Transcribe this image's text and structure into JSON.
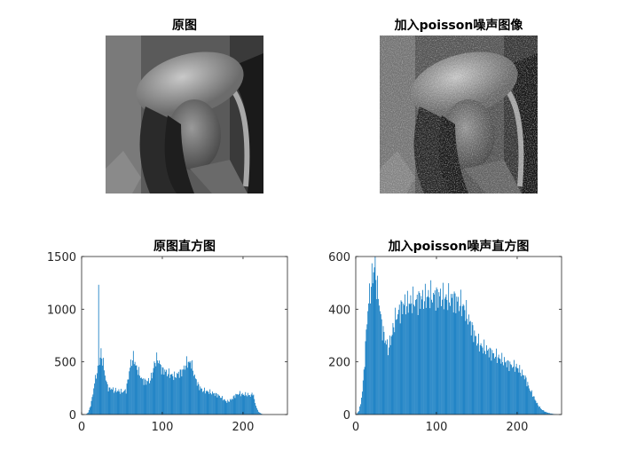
{
  "figure": {
    "background": "#ffffff",
    "bar_color": "#0072BD",
    "axis_color": "#262626"
  },
  "panels": {
    "original_image": {
      "title": "原图",
      "content": "grayscale photograph of a woman wearing a wide-brimmed hat"
    },
    "noisy_image": {
      "title": "加入poisson噪声图像",
      "content": "same grayscale photograph with grainy Poisson noise"
    }
  },
  "chart_data": [
    {
      "type": "bar",
      "title": "原图直方图",
      "xlabel": "",
      "ylabel": "",
      "xlim": [
        0,
        255
      ],
      "ylim": [
        0,
        1500
      ],
      "xticks": [
        0,
        100,
        200
      ],
      "yticks": [
        0,
        500,
        1000,
        1500
      ],
      "grid": false,
      "x": [
        0,
        5,
        8,
        10,
        12,
        14,
        16,
        18,
        20,
        21,
        22,
        23,
        24,
        25,
        26,
        27,
        28,
        30,
        32,
        34,
        36,
        38,
        40,
        45,
        50,
        55,
        58,
        60,
        62,
        64,
        66,
        68,
        70,
        72,
        75,
        80,
        85,
        88,
        90,
        92,
        94,
        96,
        98,
        100,
        102,
        105,
        110,
        115,
        120,
        125,
        128,
        130,
        132,
        134,
        135,
        136,
        138,
        140,
        145,
        150,
        160,
        170,
        180,
        185,
        190,
        195,
        200,
        205,
        210,
        212,
        215,
        218,
        220,
        222,
        225,
        255
      ],
      "values": [
        0,
        0,
        20,
        60,
        120,
        200,
        300,
        380,
        420,
        1310,
        470,
        560,
        580,
        540,
        520,
        480,
        430,
        330,
        270,
        240,
        250,
        240,
        230,
        225,
        215,
        230,
        360,
        450,
        510,
        540,
        500,
        440,
        420,
        380,
        330,
        310,
        330,
        400,
        480,
        510,
        530,
        500,
        450,
        420,
        420,
        400,
        380,
        360,
        390,
        410,
        460,
        490,
        500,
        480,
        510,
        480,
        430,
        360,
        270,
        230,
        210,
        180,
        120,
        140,
        180,
        200,
        190,
        190,
        180,
        210,
        110,
        40,
        20,
        10,
        0,
        0
      ]
    },
    {
      "type": "bar",
      "title": "加入poisson噪声直方图",
      "xlabel": "",
      "ylabel": "",
      "xlim": [
        0,
        255
      ],
      "ylim": [
        0,
        600
      ],
      "xticks": [
        0,
        100,
        200
      ],
      "yticks": [
        0,
        200,
        400,
        600
      ],
      "grid": false,
      "x": [
        0,
        2,
        4,
        6,
        8,
        10,
        12,
        14,
        16,
        18,
        20,
        22,
        23,
        24,
        25,
        26,
        28,
        30,
        32,
        35,
        38,
        40,
        42,
        45,
        48,
        50,
        55,
        60,
        65,
        70,
        75,
        80,
        85,
        90,
        95,
        100,
        105,
        110,
        115,
        120,
        125,
        130,
        135,
        140,
        145,
        150,
        155,
        160,
        165,
        170,
        175,
        180,
        190,
        200,
        205,
        210,
        215,
        220,
        225,
        230,
        235,
        240,
        245,
        250,
        255
      ],
      "values": [
        0,
        5,
        15,
        40,
        90,
        160,
        260,
        360,
        430,
        470,
        520,
        540,
        580,
        560,
        520,
        490,
        450,
        400,
        340,
        300,
        270,
        250,
        270,
        310,
        350,
        370,
        400,
        420,
        420,
        430,
        430,
        440,
        440,
        450,
        450,
        450,
        450,
        440,
        440,
        440,
        430,
        420,
        400,
        360,
        320,
        280,
        260,
        250,
        240,
        230,
        220,
        210,
        190,
        180,
        160,
        140,
        100,
        70,
        40,
        20,
        10,
        5,
        2,
        0,
        0
      ]
    }
  ]
}
